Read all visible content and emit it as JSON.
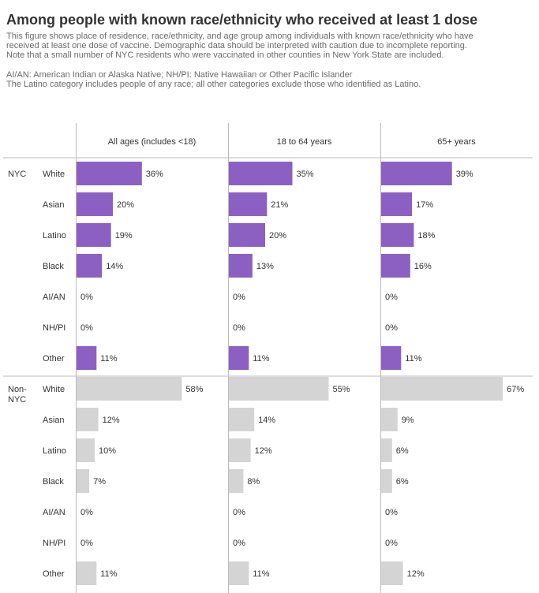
{
  "header": {
    "title": "Among people with known race/ethnicity who received at least 1 dose",
    "subtitle_lines": [
      "This figure shows place of residence, race/ethnicity, and age group among individuals with known race/ethnicity who have",
      "received at least one dose of vaccine. Demographic data should be interpreted with caution due to incomplete reporting.",
      "Note that a small number of NYC residents who were vaccinated in other counties in New York State are included."
    ],
    "note_lines": [
      "AI/AN: American Indian or Alaska Native; NH/PI: Native Hawaiian or Other Pacific Islander",
      "The Latino category includes people of any race; all other categories exclude those who identified as Latino."
    ]
  },
  "colors": {
    "nyc": "#8c5fc2",
    "non_nyc": "#d4d4d4",
    "text": "#333333",
    "grid": "#bbbbbb"
  },
  "chart_data": {
    "type": "bar",
    "orientation": "horizontal",
    "value_format": "percent",
    "columns": [
      "All ages (includes <18)",
      "18 to 64 years",
      "65+ years"
    ],
    "groups": [
      {
        "label_lines": [
          "NYC"
        ],
        "color_key": "nyc",
        "categories": [
          "White",
          "Asian",
          "Latino",
          "Black",
          "AI/AN",
          "NH/PI",
          "Other"
        ],
        "series": [
          {
            "name": "All ages (includes <18)",
            "values": [
              36,
              20,
              19,
              14,
              0,
              0,
              11
            ]
          },
          {
            "name": "18 to 64 years",
            "values": [
              35,
              21,
              20,
              13,
              0,
              0,
              11
            ]
          },
          {
            "name": "65+ years",
            "values": [
              39,
              17,
              18,
              16,
              0,
              0,
              11
            ]
          }
        ]
      },
      {
        "label_lines": [
          "Non-",
          "NYC"
        ],
        "color_key": "non_nyc",
        "categories": [
          "White",
          "Asian",
          "Latino",
          "Black",
          "AI/AN",
          "NH/PI",
          "Other"
        ],
        "series": [
          {
            "name": "All ages (includes <18)",
            "values": [
              58,
              12,
              10,
              7,
              0,
              0,
              11
            ]
          },
          {
            "name": "18 to 64 years",
            "values": [
              55,
              14,
              12,
              8,
              0,
              0,
              11
            ]
          },
          {
            "name": "65+ years",
            "values": [
              67,
              9,
              6,
              6,
              0,
              0,
              12
            ]
          }
        ]
      }
    ],
    "xlim": [
      0,
      100
    ]
  }
}
